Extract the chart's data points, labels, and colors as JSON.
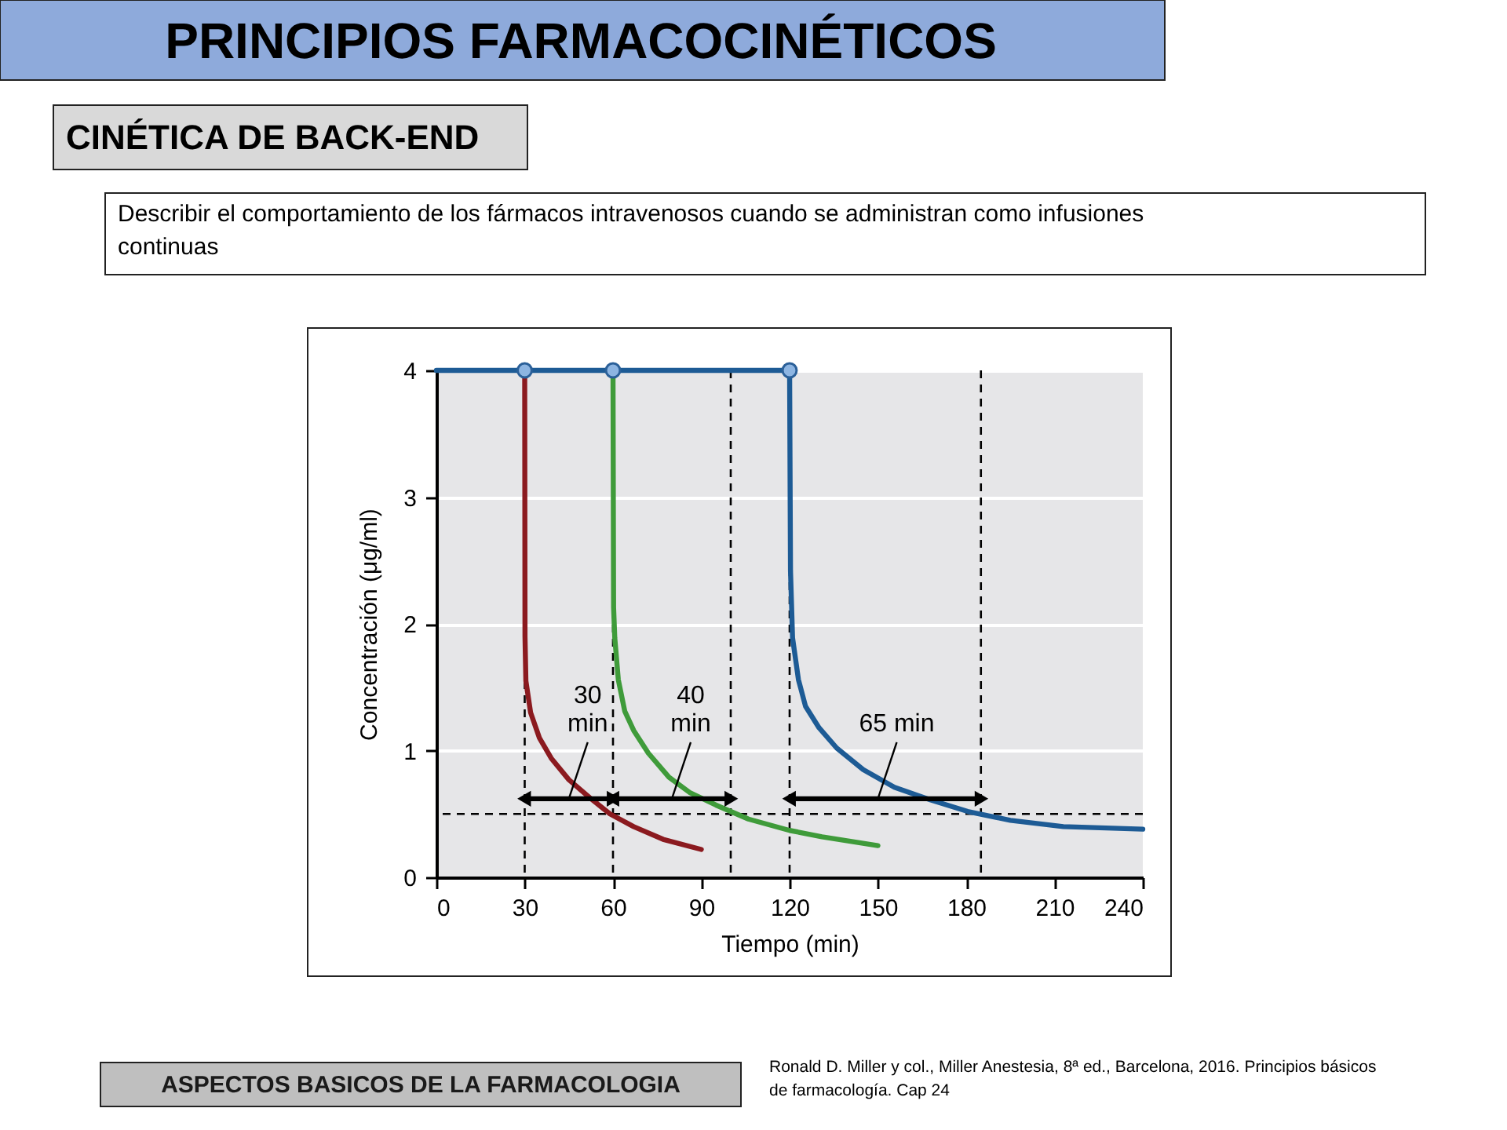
{
  "chart_data": {
    "type": "line",
    "title": "PRINCIPIOS FARMACOCINÉTICOS",
    "subtitle": "CINÉTICA DE BACK-END",
    "xlabel": "Tiempo (min)",
    "ylabel": "Concentración (μg/ml)",
    "xlim": [
      0,
      240
    ],
    "xticks": [
      0,
      30,
      60,
      90,
      120,
      150,
      180,
      210,
      240
    ],
    "ylim": [
      0,
      4
    ],
    "yticks": [
      0,
      1,
      2,
      3,
      4
    ],
    "grid": "y",
    "series": [
      {
        "color": "#8b1a1f",
        "x": [
          30,
          30.1,
          30.4,
          32,
          35,
          39,
          45,
          52,
          59,
          67,
          77,
          90
        ],
        "values": [
          4,
          1.9,
          1.55,
          1.3,
          1.1,
          0.94,
          0.77,
          0.63,
          0.5,
          0.4,
          0.3,
          0.22
        ]
      },
      {
        "color": "#3f9b3a",
        "x": [
          60,
          60.2,
          60.6,
          61.8,
          64,
          67,
          72,
          79,
          86,
          95,
          106,
          120,
          131,
          150
        ],
        "values": [
          4,
          2.13,
          1.89,
          1.56,
          1.31,
          1.16,
          0.98,
          0.79,
          0.67,
          0.57,
          0.46,
          0.37,
          0.32,
          0.25
        ]
      },
      {
        "color": "#1d5b95",
        "x": [
          0,
          120,
          120.3,
          121,
          123,
          125.4,
          130,
          136,
          145,
          155.6,
          168,
          180.5,
          195,
          213,
          240
        ],
        "values": [
          4,
          4,
          2.42,
          1.89,
          1.56,
          1.35,
          1.18,
          1.02,
          0.85,
          0.71,
          0.61,
          0.52,
          0.45,
          0.4,
          0.38
        ]
      },
      {
        "type": "scatter",
        "color": "#8db5e2",
        "marker": "circle",
        "x": [
          30,
          60,
          120
        ],
        "values": [
          4,
          4,
          4
        ]
      },
      {
        "color": "#000000",
        "marker": "triangle",
        "x": [
          30,
          60
        ],
        "values": [
          0.62,
          0.62
        ]
      },
      {
        "color": "#000000",
        "marker": "triangle",
        "x": [
          60,
          100
        ],
        "values": [
          0.62,
          0.62
        ]
      },
      {
        "color": "#000000",
        "marker": "triangle",
        "x": [
          120,
          185
        ],
        "values": [
          0.62,
          0.62
        ]
      }
    ],
    "ref_lines": [
      {
        "axis": "x",
        "value": 30,
        "color": "#000000",
        "line_style": "dashed"
      },
      {
        "axis": "x",
        "value": 60,
        "color": "#000000",
        "line_style": "dashed"
      },
      {
        "axis": "x",
        "value": 100,
        "color": "#000000",
        "line_style": "dashed"
      },
      {
        "axis": "x",
        "value": 120,
        "color": "#000000",
        "line_style": "dashed"
      },
      {
        "axis": "x",
        "value": 185,
        "color": "#000000",
        "line_style": "dashed"
      },
      {
        "axis": "y",
        "value": 0.5,
        "color": "#000000",
        "line_style": "dashed"
      }
    ],
    "annotations": [
      "Describir el comportamiento de los fármacos intravenosos cuando se administran como infusiones continuas",
      {
        "text": "30\nmin",
        "x": 45,
        "y": 0.62
      },
      {
        "text": "40\nmin",
        "x": 80,
        "y": 0.62
      },
      {
        "text": "65 min",
        "x": 150,
        "y": 0.62
      },
      "ASPECTOS BASICOS DE LA FARMACOLOGIA",
      "Ronald D. Miller y col., Miller Anestesia, 8ª ed., Barcelona, 2016. Principios básicos de farmacología. Cap 24"
    ]
  }
}
